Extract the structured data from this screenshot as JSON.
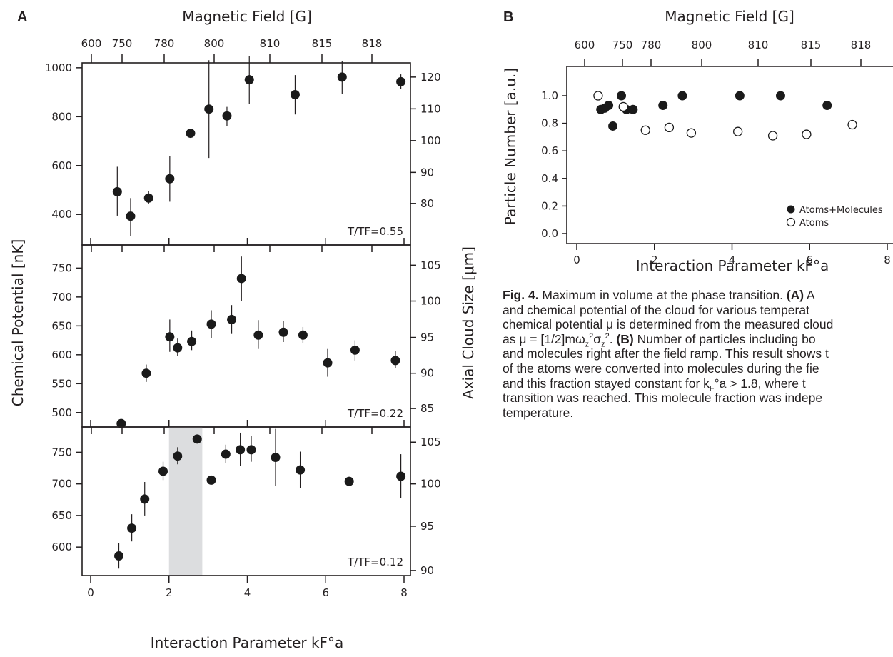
{
  "panel_labels": {
    "a": "A",
    "b": "B"
  },
  "chart_data": [
    {
      "id": "A1",
      "type": "scatter",
      "xlabel": "Interaction Parameter kF°a",
      "top_axis_label": "Magnetic Field [G]",
      "top_ticks": [
        "600",
        "750",
        "780",
        "800",
        "810",
        "815",
        "818"
      ],
      "ylabel": "Chemical Potential [nK]",
      "right_ylabel": "Axial Cloud Size [μm]",
      "xlim": [
        -0.2,
        8.3
      ],
      "ylim": [
        275,
        1020
      ],
      "yticks": [
        400,
        600,
        800,
        1000
      ],
      "right_ticks": [
        {
          "label": "80",
          "y": 445
        },
        {
          "label": "90",
          "y": 572
        },
        {
          "label": "100",
          "y": 702
        },
        {
          "label": "110",
          "y": 832
        },
        {
          "label": "120",
          "y": 962
        }
      ],
      "annotation": "T/TF=0.55",
      "points": [
        {
          "x": 0.68,
          "y": 493,
          "lo": 395,
          "hi": 595
        },
        {
          "x": 1.02,
          "y": 393,
          "lo": 313,
          "hi": 467
        },
        {
          "x": 1.48,
          "y": 467,
          "lo": 443,
          "hi": 497
        },
        {
          "x": 2.02,
          "y": 546,
          "lo": 452,
          "hi": 638
        },
        {
          "x": 2.55,
          "y": 732,
          "lo": 732,
          "hi": 732
        },
        {
          "x": 3.02,
          "y": 831,
          "lo": 631,
          "hi": 1031
        },
        {
          "x": 3.48,
          "y": 803,
          "lo": 762,
          "hi": 840
        },
        {
          "x": 4.05,
          "y": 951,
          "lo": 853,
          "hi": 1048
        },
        {
          "x": 5.22,
          "y": 890,
          "lo": 809,
          "hi": 970
        },
        {
          "x": 6.42,
          "y": 962,
          "lo": 894,
          "hi": 1028
        },
        {
          "x": 7.92,
          "y": 943,
          "lo": 913,
          "hi": 973
        }
      ]
    },
    {
      "id": "A2",
      "type": "scatter",
      "xlim": [
        -0.2,
        8.3
      ],
      "ylim": [
        475,
        790
      ],
      "yticks": [
        500,
        550,
        600,
        650,
        700,
        750
      ],
      "right_ticks": [
        {
          "label": "85",
          "y": 507
        },
        {
          "label": "90",
          "y": 568
        },
        {
          "label": "95",
          "y": 630
        },
        {
          "label": "100",
          "y": 693
        },
        {
          "label": "105",
          "y": 755
        }
      ],
      "annotation": "T/TF=0.22",
      "points": [
        {
          "x": 0.78,
          "y": 481,
          "lo": 481,
          "hi": 481
        },
        {
          "x": 1.42,
          "y": 568,
          "lo": 553,
          "hi": 583
        },
        {
          "x": 2.02,
          "y": 631,
          "lo": 605,
          "hi": 661
        },
        {
          "x": 2.22,
          "y": 612,
          "lo": 598,
          "hi": 628
        },
        {
          "x": 2.58,
          "y": 623,
          "lo": 608,
          "hi": 642
        },
        {
          "x": 3.08,
          "y": 653,
          "lo": 629,
          "hi": 677
        },
        {
          "x": 3.6,
          "y": 661,
          "lo": 636,
          "hi": 686
        },
        {
          "x": 3.85,
          "y": 732,
          "lo": 693,
          "hi": 770
        },
        {
          "x": 4.28,
          "y": 634,
          "lo": 610,
          "hi": 660
        },
        {
          "x": 4.92,
          "y": 639,
          "lo": 622,
          "hi": 658
        },
        {
          "x": 5.42,
          "y": 634,
          "lo": 620,
          "hi": 648
        },
        {
          "x": 6.05,
          "y": 586,
          "lo": 562,
          "hi": 610
        },
        {
          "x": 6.75,
          "y": 608,
          "lo": 590,
          "hi": 625
        },
        {
          "x": 7.78,
          "y": 590,
          "lo": 577,
          "hi": 606
        }
      ]
    },
    {
      "id": "A3",
      "type": "scatter",
      "xlabel": "Interaction Parameter kF°a",
      "xticks": [
        0,
        2,
        4,
        6,
        8
      ],
      "xlim": [
        -0.2,
        8.3
      ],
      "ylim": [
        555,
        790
      ],
      "yticks": [
        600,
        650,
        700,
        750
      ],
      "right_ticks": [
        {
          "label": "90",
          "y": 563
        },
        {
          "label": "95",
          "y": 633
        },
        {
          "label": "100",
          "y": 700
        },
        {
          "label": "105",
          "y": 766
        }
      ],
      "shaded_x": [
        2.0,
        2.85
      ],
      "annotation": "T/TF=0.12",
      "points": [
        {
          "x": 0.72,
          "y": 586,
          "lo": 566,
          "hi": 606
        },
        {
          "x": 1.05,
          "y": 630,
          "lo": 609,
          "hi": 652
        },
        {
          "x": 1.38,
          "y": 676,
          "lo": 650,
          "hi": 703
        },
        {
          "x": 1.85,
          "y": 720,
          "lo": 706,
          "hi": 735
        },
        {
          "x": 2.22,
          "y": 744,
          "lo": 731,
          "hi": 758
        },
        {
          "x": 2.72,
          "y": 771,
          "lo": 771,
          "hi": 771
        },
        {
          "x": 3.08,
          "y": 706,
          "lo": 706,
          "hi": 706
        },
        {
          "x": 3.45,
          "y": 747,
          "lo": 733,
          "hi": 762
        },
        {
          "x": 3.82,
          "y": 754,
          "lo": 729,
          "hi": 781
        },
        {
          "x": 4.1,
          "y": 754,
          "lo": 735,
          "hi": 776
        },
        {
          "x": 4.72,
          "y": 742,
          "lo": 697,
          "hi": 787
        },
        {
          "x": 5.35,
          "y": 722,
          "lo": 693,
          "hi": 751
        },
        {
          "x": 6.6,
          "y": 704,
          "lo": 704,
          "hi": 704
        },
        {
          "x": 7.92,
          "y": 712,
          "lo": 677,
          "hi": 747
        }
      ]
    },
    {
      "id": "B",
      "type": "scatter",
      "xlabel": "Interaction Parameter kF°a",
      "ylabel": "Particle Number [a.u.]",
      "top_axis_label": "Magnetic Field [G]",
      "top_ticks": [
        "600",
        "750",
        "780",
        "800",
        "810",
        "815",
        "818"
      ],
      "xticks": [
        0,
        2,
        4,
        6,
        8
      ],
      "yticks": [
        0.0,
        0.2,
        0.4,
        0.6,
        0.8,
        1.0
      ],
      "xlim": [
        -0.2,
        8.2
      ],
      "ylim": [
        -0.08,
        1.19
      ],
      "legend": [
        "Atoms+Molecules",
        "Atoms"
      ],
      "legend_position": "bottom-right",
      "series": [
        {
          "name": "Atoms+Molecules",
          "marker": "filled",
          "points": [
            {
              "x": 0.62,
              "y": 0.9
            },
            {
              "x": 0.72,
              "y": 0.91
            },
            {
              "x": 0.82,
              "y": 0.93
            },
            {
              "x": 0.93,
              "y": 0.78
            },
            {
              "x": 1.15,
              "y": 1.0
            },
            {
              "x": 1.28,
              "y": 0.9
            },
            {
              "x": 1.45,
              "y": 0.9
            },
            {
              "x": 2.22,
              "y": 0.93
            },
            {
              "x": 2.72,
              "y": 1.0
            },
            {
              "x": 4.2,
              "y": 1.0
            },
            {
              "x": 5.25,
              "y": 1.0
            },
            {
              "x": 6.45,
              "y": 0.93
            }
          ]
        },
        {
          "name": "Atoms",
          "marker": "open",
          "points": [
            {
              "x": 0.55,
              "y": 1.0
            },
            {
              "x": 1.2,
              "y": 0.92
            },
            {
              "x": 1.77,
              "y": 0.75
            },
            {
              "x": 2.38,
              "y": 0.77
            },
            {
              "x": 2.95,
              "y": 0.73
            },
            {
              "x": 4.15,
              "y": 0.74
            },
            {
              "x": 5.05,
              "y": 0.71
            },
            {
              "x": 5.92,
              "y": 0.72
            },
            {
              "x": 7.1,
              "y": 0.79
            }
          ]
        }
      ]
    }
  ],
  "caption": {
    "lines": [
      {
        "parts": [
          {
            "b": true,
            "t": "Fig. 4."
          },
          {
            "b": false,
            "t": " Maximum in volume at the phase transition. "
          },
          {
            "b": true,
            "t": "(A)"
          },
          {
            "b": false,
            "t": " A"
          }
        ]
      },
      {
        "parts": [
          {
            "b": false,
            "t": "and chemical potential of the cloud for various temperat"
          }
        ]
      },
      {
        "parts": [
          {
            "b": false,
            "t": "chemical potential μ is determined from the measured cloud"
          }
        ]
      },
      {
        "parts": [
          {
            "b": false,
            "t": "as μ = [1/2]mω"
          },
          {
            "b": false,
            "t": "z",
            "sub": true
          },
          {
            "b": false,
            "t": "2",
            "sup": true
          },
          {
            "b": false,
            "t": "σ"
          },
          {
            "b": false,
            "t": "z",
            "sub": true
          },
          {
            "b": false,
            "t": "2",
            "sup": true
          },
          {
            "b": false,
            "t": ". "
          },
          {
            "b": true,
            "t": "(B)"
          },
          {
            "b": false,
            "t": " Number of particles including bo"
          }
        ]
      },
      {
        "parts": [
          {
            "b": false,
            "t": "and molecules right after the field ramp. This result shows t"
          }
        ]
      },
      {
        "parts": [
          {
            "b": false,
            "t": "of the atoms were converted into molecules during the fie"
          }
        ]
      },
      {
        "parts": [
          {
            "b": false,
            "t": "and this fraction stayed constant for k"
          },
          {
            "b": false,
            "t": "F",
            "sub": true
          },
          {
            "b": false,
            "t": "°a > 1.8, where t"
          }
        ]
      },
      {
        "parts": [
          {
            "b": false,
            "t": "transition was reached. This molecule fraction was indepe"
          }
        ]
      },
      {
        "parts": [
          {
            "b": false,
            "t": "temperature."
          }
        ]
      }
    ]
  }
}
